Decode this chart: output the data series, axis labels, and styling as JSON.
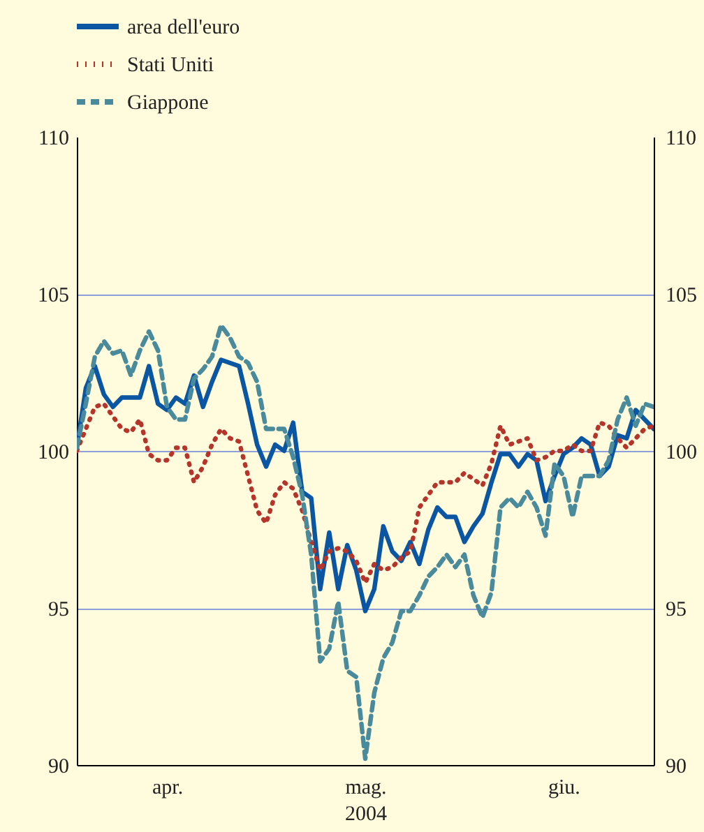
{
  "chart_data": {
    "type": "line",
    "xlabel": "2004",
    "categories": [
      null,
      null,
      null,
      null,
      null,
      null,
      null,
      null,
      null,
      null,
      "apr.",
      null,
      null,
      null,
      null,
      null,
      null,
      null,
      null,
      null,
      null,
      null,
      null,
      null,
      null,
      null,
      null,
      null,
      null,
      null,
      null,
      null,
      "mag.",
      null,
      null,
      null,
      null,
      null,
      null,
      null,
      null,
      null,
      null,
      null,
      null,
      null,
      null,
      null,
      null,
      null,
      null,
      null,
      null,
      null,
      "giu.",
      null,
      null,
      null,
      null,
      null,
      null,
      null,
      null,
      null,
      null
    ],
    "ylim": [
      90,
      110
    ],
    "yticks": [
      90,
      95,
      100,
      105,
      110
    ],
    "y2lim": [
      90,
      110
    ],
    "y2ticks": [
      90,
      95,
      100,
      105,
      110
    ],
    "grid": "y",
    "legend": "top left",
    "series": [
      {
        "name": "area dell'euro",
        "color": "#0a56a3",
        "line_style": "solid",
        "values": [
          100.1,
          102.0,
          102.7,
          101.8,
          101.4,
          101.7,
          101.7,
          101.7,
          102.7,
          101.5,
          101.3,
          101.7,
          101.5,
          102.4,
          101.4,
          102.2,
          102.9,
          102.8,
          102.7,
          101.5,
          100.2,
          99.5,
          100.2,
          100.0,
          100.9,
          98.7,
          98.5,
          95.6,
          97.4,
          95.6,
          97.0,
          96.2,
          94.9,
          95.6,
          97.6,
          96.8,
          96.5,
          97.1,
          96.4,
          97.5,
          98.2,
          97.9,
          97.9,
          97.1,
          97.6,
          98.0,
          99.0,
          99.9,
          99.9,
          99.5,
          99.9,
          99.7,
          98.4,
          99.2,
          99.9,
          100.1,
          100.4,
          100.2,
          99.2,
          99.5,
          100.5,
          100.4,
          101.3,
          101.0,
          100.7
        ]
      },
      {
        "name": "Stati Uniti",
        "color": "#b5352b",
        "line_style": "dotted",
        "values": [
          100.0,
          100.7,
          101.4,
          101.5,
          101.1,
          100.7,
          100.6,
          101.0,
          99.9,
          99.7,
          99.7,
          100.1,
          100.1,
          99.0,
          99.5,
          100.2,
          100.7,
          100.4,
          100.3,
          99.2,
          98.1,
          97.7,
          98.6,
          99.0,
          98.8,
          98.1,
          97.1,
          96.2,
          96.8,
          96.9,
          96.8,
          96.5,
          95.8,
          96.4,
          96.2,
          96.3,
          96.6,
          96.8,
          98.2,
          98.6,
          99.0,
          99.0,
          99.0,
          99.3,
          99.1,
          98.9,
          99.6,
          100.8,
          100.2,
          100.3,
          100.4,
          99.7,
          99.8,
          100.0,
          100.0,
          100.2,
          100.0,
          100.0,
          100.9,
          100.8,
          100.4,
          100.1,
          100.4,
          100.7,
          100.8
        ]
      },
      {
        "name": "Giappone",
        "color": "#4a8b9b",
        "line_style": "dashed",
        "values": [
          100.1,
          101.5,
          103.0,
          103.5,
          103.1,
          103.2,
          102.4,
          103.2,
          103.8,
          103.2,
          101.4,
          101.0,
          101.0,
          102.3,
          102.6,
          103.0,
          104.0,
          103.6,
          103.0,
          102.8,
          102.2,
          100.7,
          100.7,
          100.7,
          99.8,
          98.6,
          96.7,
          93.3,
          93.7,
          95.2,
          93.0,
          92.8,
          90.2,
          92.3,
          93.4,
          93.9,
          94.9,
          94.9,
          95.4,
          96.0,
          96.3,
          96.7,
          96.3,
          96.7,
          95.4,
          94.7,
          95.5,
          98.2,
          98.5,
          98.2,
          98.7,
          98.2,
          97.3,
          99.6,
          99.2,
          97.9,
          99.2,
          99.2,
          99.2,
          99.7,
          101.0,
          101.7,
          100.8,
          101.5,
          101.4
        ]
      }
    ]
  }
}
